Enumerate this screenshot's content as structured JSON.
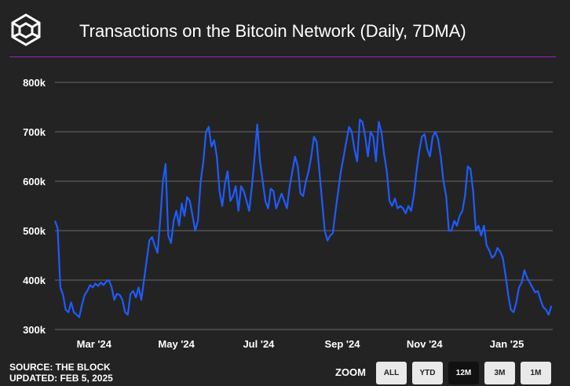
{
  "header": {
    "title": "Transactions on the Bitcoin Network (Daily, 7DMA)"
  },
  "footer": {
    "source": "SOURCE: THE BLOCK",
    "updated": "UPDATED: FEB 5, 2025"
  },
  "zoom": {
    "label": "ZOOM",
    "buttons": [
      "ALL",
      "YTD",
      "12M",
      "3M",
      "1M"
    ],
    "active": "12M"
  },
  "colors": {
    "background": "#232323",
    "line": "#1f5cff",
    "divider": "#9b1fd3",
    "grid": "#6a6a6a"
  },
  "chart_data": {
    "type": "line",
    "title": "Transactions on the Bitcoin Network (Daily, 7DMA)",
    "xlabel": "",
    "ylabel": "",
    "x_tick_labels": [
      "Mar '24",
      "May '24",
      "Jul '24",
      "Sep '24",
      "Nov '24",
      "Jan '25"
    ],
    "x_tick_dates": [
      "2024-03-01",
      "2024-05-01",
      "2024-07-01",
      "2024-09-01",
      "2024-11-01",
      "2025-01-01"
    ],
    "xlim": [
      "2024-02-01",
      "2025-02-04"
    ],
    "y_tick_labels": [
      "300k",
      "400k",
      "500k",
      "600k",
      "700k",
      "800k"
    ],
    "y_ticks": [
      300000,
      400000,
      500000,
      600000,
      700000,
      800000
    ],
    "ylim": [
      300000,
      800000
    ],
    "grid": true,
    "legend": "none",
    "series": [
      {
        "x": [
          "2024-02-01",
          "2024-02-03",
          "2024-02-05",
          "2024-02-07",
          "2024-02-09",
          "2024-02-11",
          "2024-02-13",
          "2024-02-15",
          "2024-02-17",
          "2024-02-19",
          "2024-02-21",
          "2024-02-23",
          "2024-02-25",
          "2024-02-27",
          "2024-02-29",
          "2024-03-02",
          "2024-03-04",
          "2024-03-06",
          "2024-03-08",
          "2024-03-10",
          "2024-03-12",
          "2024-03-14",
          "2024-03-16",
          "2024-03-18",
          "2024-03-20",
          "2024-03-22",
          "2024-03-24",
          "2024-03-26",
          "2024-03-28",
          "2024-03-30",
          "2024-04-01",
          "2024-04-03",
          "2024-04-05",
          "2024-04-07",
          "2024-04-09",
          "2024-04-11",
          "2024-04-13",
          "2024-04-15",
          "2024-04-17",
          "2024-04-19",
          "2024-04-21",
          "2024-04-23",
          "2024-04-25",
          "2024-04-27",
          "2024-04-29",
          "2024-05-01",
          "2024-05-03",
          "2024-05-05",
          "2024-05-07",
          "2024-05-09",
          "2024-05-11",
          "2024-05-13",
          "2024-05-15",
          "2024-05-17",
          "2024-05-19",
          "2024-05-21",
          "2024-05-23",
          "2024-05-25",
          "2024-05-27",
          "2024-05-29",
          "2024-05-31",
          "2024-06-02",
          "2024-06-04",
          "2024-06-06",
          "2024-06-08",
          "2024-06-10",
          "2024-06-12",
          "2024-06-14",
          "2024-06-16",
          "2024-06-18",
          "2024-06-20",
          "2024-06-22",
          "2024-06-24",
          "2024-06-26",
          "2024-06-28",
          "2024-06-30",
          "2024-07-02",
          "2024-07-04",
          "2024-07-06",
          "2024-07-08",
          "2024-07-10",
          "2024-07-12",
          "2024-07-14",
          "2024-07-16",
          "2024-07-18",
          "2024-07-20",
          "2024-07-22",
          "2024-07-24",
          "2024-07-26",
          "2024-07-28",
          "2024-07-30",
          "2024-08-01",
          "2024-08-03",
          "2024-08-05",
          "2024-08-07",
          "2024-08-09",
          "2024-08-11",
          "2024-08-13",
          "2024-08-15",
          "2024-08-17",
          "2024-08-19",
          "2024-08-21",
          "2024-08-23",
          "2024-08-25",
          "2024-08-27",
          "2024-08-29",
          "2024-08-31",
          "2024-09-02",
          "2024-09-04",
          "2024-09-06",
          "2024-09-08",
          "2024-09-10",
          "2024-09-12",
          "2024-09-14",
          "2024-09-16",
          "2024-09-18",
          "2024-09-20",
          "2024-09-22",
          "2024-09-24",
          "2024-09-26",
          "2024-09-28",
          "2024-09-30",
          "2024-10-02",
          "2024-10-04",
          "2024-10-06",
          "2024-10-08",
          "2024-10-10",
          "2024-10-12",
          "2024-10-14",
          "2024-10-16",
          "2024-10-18",
          "2024-10-20",
          "2024-10-22",
          "2024-10-24",
          "2024-10-26",
          "2024-10-28",
          "2024-10-30",
          "2024-11-01",
          "2024-11-03",
          "2024-11-05",
          "2024-11-07",
          "2024-11-09",
          "2024-11-11",
          "2024-11-13",
          "2024-11-15",
          "2024-11-17",
          "2024-11-19",
          "2024-11-21",
          "2024-11-23",
          "2024-11-25",
          "2024-11-27",
          "2024-11-29",
          "2024-12-01",
          "2024-12-03",
          "2024-12-05",
          "2024-12-07",
          "2024-12-09",
          "2024-12-11",
          "2024-12-13",
          "2024-12-15",
          "2024-12-17",
          "2024-12-19",
          "2024-12-21",
          "2024-12-23",
          "2024-12-25",
          "2024-12-27",
          "2024-12-29",
          "2024-12-31",
          "2025-01-02",
          "2025-01-04",
          "2025-01-06",
          "2025-01-08",
          "2025-01-10",
          "2025-01-12",
          "2025-01-14",
          "2025-01-16",
          "2025-01-18",
          "2025-01-20",
          "2025-01-22",
          "2025-01-24",
          "2025-01-26",
          "2025-01-28",
          "2025-01-30",
          "2025-02-01",
          "2025-02-03"
        ],
        "y": [
          520000,
          505000,
          385000,
          370000,
          340000,
          335000,
          355000,
          335000,
          330000,
          325000,
          350000,
          370000,
          378000,
          390000,
          385000,
          393000,
          388000,
          395000,
          390000,
          397000,
          400000,
          385000,
          360000,
          372000,
          370000,
          360000,
          335000,
          330000,
          372000,
          378000,
          365000,
          385000,
          360000,
          400000,
          440000,
          480000,
          487000,
          470000,
          455000,
          520000,
          600000,
          635000,
          490000,
          475000,
          520000,
          540000,
          510000,
          555000,
          530000,
          568000,
          560000,
          530000,
          500000,
          520000,
          600000,
          640000,
          700000,
          710000,
          670000,
          683000,
          650000,
          580000,
          550000,
          595000,
          620000,
          560000,
          570000,
          590000,
          540000,
          590000,
          580000,
          560000,
          540000,
          590000,
          650000,
          715000,
          640000,
          600000,
          560000,
          545000,
          585000,
          580000,
          545000,
          560000,
          575000,
          560000,
          545000,
          590000,
          620000,
          650000,
          630000,
          575000,
          570000,
          600000,
          620000,
          650000,
          690000,
          680000,
          620000,
          560000,
          500000,
          480000,
          490000,
          495000,
          540000,
          580000,
          620000,
          650000,
          680000,
          710000,
          700000,
          665000,
          640000,
          725000,
          720000,
          690000,
          650000,
          700000,
          690000,
          640000,
          720000,
          700000,
          655000,
          620000,
          560000,
          550000,
          565000,
          545000,
          550000,
          545000,
          535000,
          550000,
          540000,
          570000,
          620000,
          660000,
          690000,
          695000,
          665000,
          650000,
          690000,
          700000,
          685000,
          650000,
          600000,
          570000,
          500000,
          500000,
          520000,
          510000,
          530000,
          540000,
          570000,
          630000,
          625000,
          580000,
          500000,
          510000,
          490000,
          510000,
          470000,
          460000,
          445000,
          450000,
          465000,
          458000,
          445000,
          410000,
          370000,
          340000,
          335000,
          355000,
          385000,
          395000,
          420000,
          405000,
          395000,
          385000,
          375000,
          378000,
          360000,
          345000,
          340000,
          330000,
          348000
        ]
      }
    ]
  }
}
